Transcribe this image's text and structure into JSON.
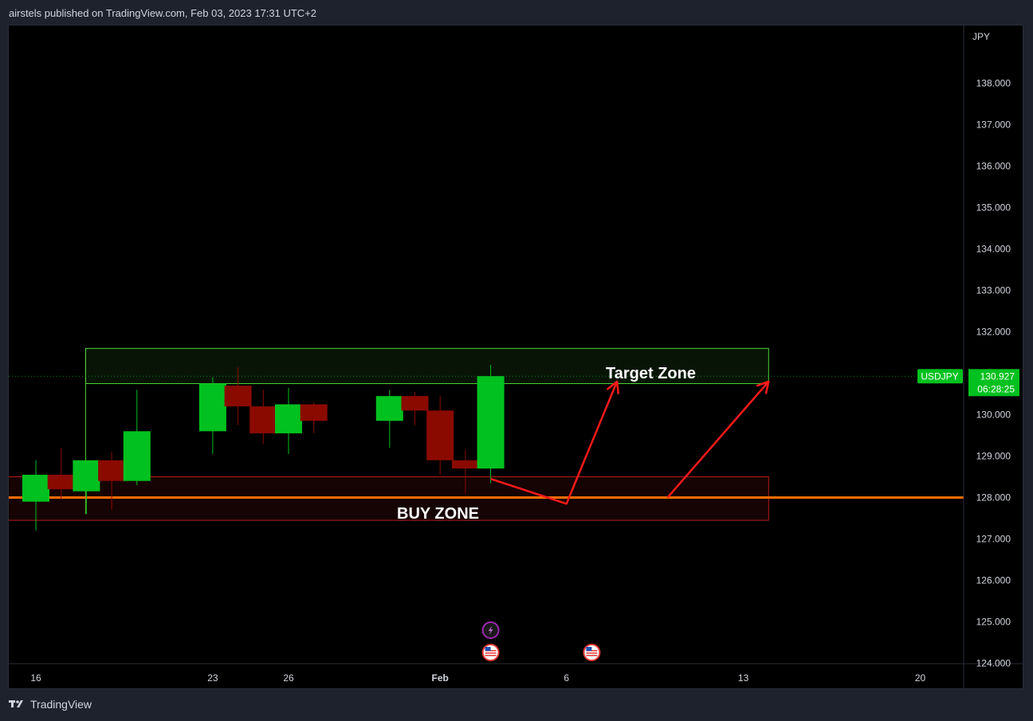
{
  "header": {
    "published": "airstels published on TradingView.com, Feb 03, 2023 17:31 UTC+2"
  },
  "footer": {
    "brand": "TradingView"
  },
  "colors": {
    "up": "#00c11f",
    "down": "#8b0a00",
    "target_zone": "#4cd137",
    "buy_zone": "#b71c1c",
    "support_line": "#ff6d00",
    "arrows": "#ff1a1a",
    "price_tag": "#00c11f"
  },
  "chart_data": {
    "type": "candlestick",
    "symbol": "USDJPY",
    "currency": "JPY",
    "last_price": "130.927",
    "countdown": "06:28:25",
    "y_ticks": [
      "138.000",
      "137.000",
      "136.000",
      "135.000",
      "134.000",
      "133.000",
      "132.000",
      "130.000",
      "129.000",
      "128.000",
      "127.000",
      "126.000",
      "125.000",
      "124.000"
    ],
    "x_ticks": [
      "16",
      "23",
      "26",
      "Feb",
      "6",
      "13",
      "20"
    ],
    "candles": [
      {
        "date": "2023-01-13",
        "open": 129.0,
        "high": 129.4,
        "low": 127.9,
        "close": 128.0
      },
      {
        "date": "2023-01-16",
        "open": 127.9,
        "high": 128.9,
        "low": 127.2,
        "close": 128.55
      },
      {
        "date": "2023-01-17",
        "open": 128.55,
        "high": 129.2,
        "low": 127.95,
        "close": 128.2
      },
      {
        "date": "2023-01-18",
        "open": 128.15,
        "high": 128.9,
        "low": 127.6,
        "close": 128.9
      },
      {
        "date": "2023-01-19",
        "open": 128.9,
        "high": 129.1,
        "low": 127.7,
        "close": 128.4
      },
      {
        "date": "2023-01-20",
        "open": 128.4,
        "high": 130.6,
        "low": 128.3,
        "close": 129.6
      },
      {
        "date": "2023-01-23",
        "open": 129.6,
        "high": 130.9,
        "low": 129.05,
        "close": 130.75
      },
      {
        "date": "2023-01-24",
        "open": 130.7,
        "high": 131.15,
        "low": 129.75,
        "close": 130.2
      },
      {
        "date": "2023-01-25",
        "open": 130.2,
        "high": 130.6,
        "low": 129.3,
        "close": 129.55
      },
      {
        "date": "2023-01-26",
        "open": 129.55,
        "high": 130.65,
        "low": 129.05,
        "close": 130.25
      },
      {
        "date": "2023-01-27",
        "open": 130.25,
        "high": 130.3,
        "low": 129.55,
        "close": 129.85
      },
      {
        "date": "2023-01-30",
        "open": 129.85,
        "high": 130.6,
        "low": 129.2,
        "close": 130.45
      },
      {
        "date": "2023-01-31",
        "open": 130.45,
        "high": 130.55,
        "low": 129.75,
        "close": 130.1
      },
      {
        "date": "2023-02-01",
        "open": 130.1,
        "high": 130.45,
        "low": 128.55,
        "close": 128.9
      },
      {
        "date": "2023-02-02",
        "open": 128.9,
        "high": 129.15,
        "low": 128.1,
        "close": 128.7
      },
      {
        "date": "2023-02-03",
        "open": 128.7,
        "high": 131.2,
        "low": 128.35,
        "close": 130.93
      }
    ],
    "zones": [
      {
        "label": "Target Zone",
        "from": "2023-01-18",
        "to": "2023-02-14",
        "low": 130.75,
        "high": 131.6
      },
      {
        "label": "BUY ZONE",
        "from": "2023-01-12",
        "to": "2023-02-14",
        "low": 127.45,
        "high": 128.5
      }
    ],
    "support_line": 128.0,
    "projection_arrows": [
      [
        [
          "2023-02-03",
          128.45
        ],
        [
          "2023-02-06",
          127.85
        ],
        [
          "2023-02-08",
          130.8
        ]
      ],
      [
        [
          "2023-02-10",
          128.0
        ],
        [
          "2023-02-14",
          130.8
        ]
      ]
    ],
    "event_markers": [
      {
        "date": "2023-02-03",
        "icon": "lightning-icon"
      },
      {
        "date": "2023-02-03",
        "icon": "us-flag-icon"
      },
      {
        "date": "2023-02-07",
        "icon": "us-flag-icon"
      }
    ]
  }
}
